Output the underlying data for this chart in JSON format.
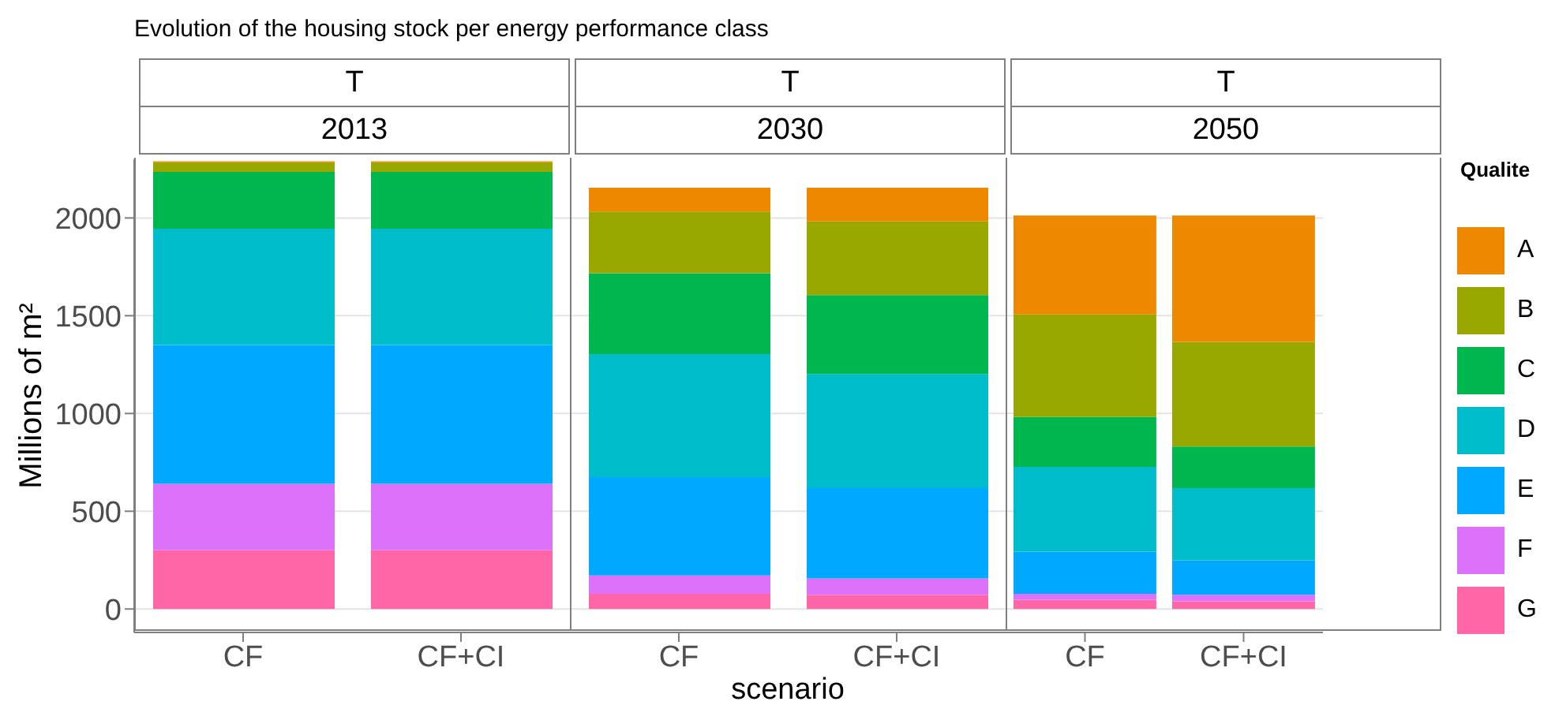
{
  "chart_data": [
    {
      "type": "bar",
      "stacked": true,
      "title": "T",
      "subtitle": "2013",
      "ylabel": "Millions of m²",
      "annotations": [
        "Evolution of the housing stock per energy performance class"
      ],
      "categories": [
        "CF",
        "CF+CI"
      ],
      "ylim": [
        -120,
        2300
      ],
      "yticks": [
        0,
        500,
        1000,
        1500,
        2000
      ],
      "grid": "y",
      "legend": false,
      "series": [
        {
          "color": "#ff66a8",
          "values": [
            300,
            300
          ]
        },
        {
          "color": "#dc71fa",
          "values": [
            340,
            340
          ]
        },
        {
          "color": "#00a9ff",
          "values": [
            710,
            710
          ]
        },
        {
          "color": "#00bdcb",
          "values": [
            595,
            595
          ]
        },
        {
          "color": "#00b74f",
          "values": [
            290,
            290
          ]
        },
        {
          "color": "#99a800",
          "values": [
            50,
            50
          ]
        },
        {
          "color": "#ee8800",
          "values": [
            5,
            5
          ]
        }
      ]
    },
    {
      "type": "bar",
      "stacked": true,
      "title": "T",
      "subtitle": "2030",
      "xlabel": "scenario",
      "categories": [
        "CF",
        "CF+CI"
      ],
      "ylim": [
        -120,
        2300
      ],
      "yticks": [
        0,
        500,
        1000,
        1500,
        2000
      ],
      "grid": "y",
      "legend": false,
      "tick_labels": "x",
      "series": [
        {
          "color": "#ff66a8",
          "values": [
            78,
            73
          ]
        },
        {
          "color": "#dc71fa",
          "values": [
            93,
            83
          ]
        },
        {
          "color": "#00a9ff",
          "values": [
            504,
            462
          ]
        },
        {
          "color": "#00bdcb",
          "values": [
            629,
            584
          ]
        },
        {
          "color": "#00b74f",
          "values": [
            413,
            403
          ]
        },
        {
          "color": "#99a800",
          "values": [
            316,
            377
          ]
        },
        {
          "color": "#ee8800",
          "values": [
            122,
            173
          ]
        }
      ]
    },
    {
      "type": "bar",
      "stacked": true,
      "title": "T",
      "subtitle": "2050",
      "legend_title": "Qualite",
      "categories": [
        "CF",
        "CF+CI"
      ],
      "ylim": [
        -120,
        2300
      ],
      "yticks": [
        0,
        500,
        1000,
        1500,
        2000
      ],
      "grid": "y",
      "legend": "right",
      "tick_labels": "x",
      "series": [
        {
          "name": "G",
          "color": "#ff66a8",
          "values": [
            47,
            39
          ]
        },
        {
          "name": "F",
          "color": "#dc71fa",
          "values": [
            31,
            34
          ]
        },
        {
          "name": "E",
          "color": "#00a9ff",
          "values": [
            215,
            176
          ]
        },
        {
          "name": "D",
          "color": "#00bdcb",
          "values": [
            434,
            369
          ]
        },
        {
          "name": "C",
          "color": "#00b74f",
          "values": [
            255,
            213
          ]
        },
        {
          "name": "B",
          "color": "#99a800",
          "values": [
            524,
            535
          ]
        },
        {
          "name": "A",
          "color": "#ee8800",
          "values": [
            507,
            647
          ]
        }
      ]
    }
  ]
}
